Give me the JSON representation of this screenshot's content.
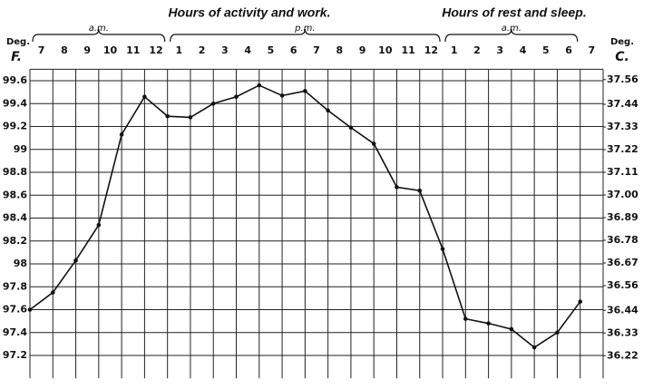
{
  "chart_data": {
    "type": "line",
    "headers": [
      "Hours of activity and work.",
      "Hours of rest and sleep."
    ],
    "periods": [
      "a.m.",
      "p.m.",
      "a.m."
    ],
    "y_unit": [
      "Deg.",
      "F."
    ],
    "y2_unit": [
      "Deg.",
      "C."
    ],
    "categories": [
      "7",
      "8",
      "9",
      "10",
      "11",
      "12",
      "1",
      "2",
      "3",
      "4",
      "5",
      "6",
      "7",
      "8",
      "9",
      "10",
      "11",
      "12",
      "1",
      "2",
      "3",
      "4",
      "5",
      "6",
      "7"
    ],
    "values": [
      97.6,
      97.75,
      98.03,
      98.34,
      99.13,
      99.46,
      99.29,
      99.28,
      99.4,
      99.46,
      99.56,
      99.47,
      99.51,
      99.34,
      99.19,
      99.05,
      98.67,
      98.64,
      98.13,
      97.52,
      97.48,
      97.43,
      97.27,
      97.4,
      97.67
    ],
    "color": "#111111",
    "ylim": [
      97.0,
      99.7
    ],
    "yticks": [
      97.2,
      97.4,
      97.6,
      97.8,
      98.0,
      98.2,
      98.4,
      98.6,
      98.8,
      99.0,
      99.2,
      99.4,
      99.6
    ],
    "y2lim": [
      36.11,
      37.61
    ],
    "y2ticks": [
      36.22,
      36.33,
      36.44,
      36.56,
      36.67,
      36.78,
      36.89,
      {
        "value": 37.0,
        "label": "37.00"
      },
      37.11,
      37.22,
      37.33,
      37.44,
      37.56
    ],
    "grid": true
  }
}
